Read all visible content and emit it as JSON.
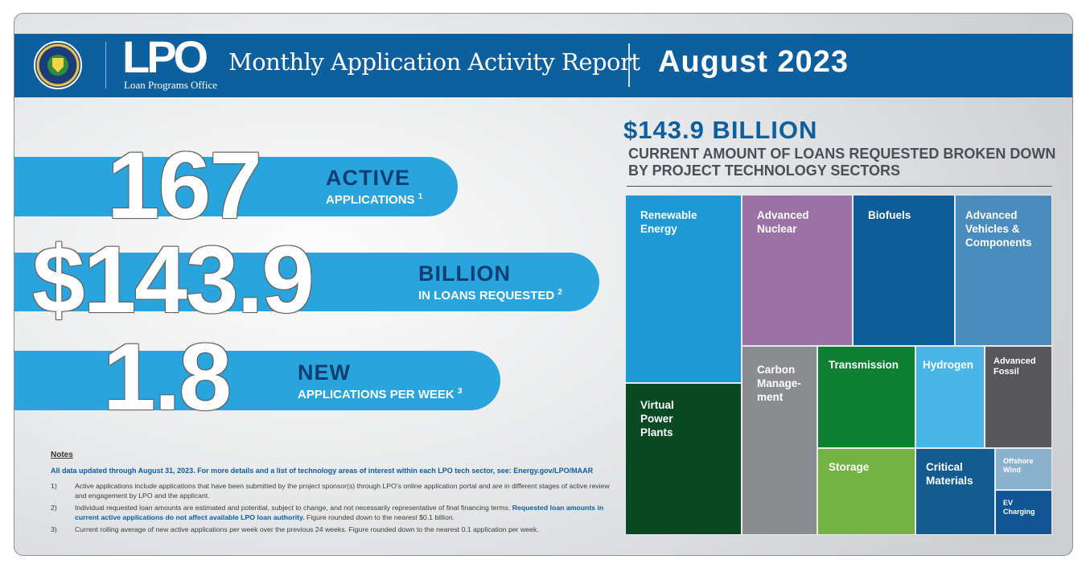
{
  "header": {
    "seal_label": "U.S. Department of Energy seal",
    "logo_text": "LPO",
    "logo_subtitle": "Loan Programs Office",
    "title": "Monthly Application Activity Report",
    "date": "August 2023"
  },
  "stats": [
    {
      "number": "167",
      "label": "ACTIVE",
      "sublabel": "APPLICATIONS",
      "note": "1"
    },
    {
      "number": "$143.9",
      "label": "BILLION",
      "sublabel": "IN LOANS REQUESTED",
      "note": "2"
    },
    {
      "number": "1.8",
      "label": "NEW",
      "sublabel": "APPLICATIONS PER WEEK",
      "note": "3"
    }
  ],
  "notes": {
    "title": "Notes",
    "lead": "All data updated through August 31, 2023. For more details and a list of technology areas of interest within each LPO tech sector, see: ",
    "lead_link": "Energy.gov/LPO/MAAR",
    "items": [
      {
        "num": "1)",
        "text": "Active applications include applications that have been submitted by the project sponsor(s) through LPO’s online application portal and are in different stages of active review and engagement by LPO and the applicant."
      },
      {
        "num": "2)",
        "text": "Individual requested loan amounts are estimated and potential, subject to change, and not necessarily representative of final financing terms. ",
        "highlight": "Requested loan amounts in current active applications do not affect available LPO loan authority.",
        "text_after": " Figure rounded down to the nearest $0.1 billion."
      },
      {
        "num": "3)",
        "text": "Current rolling average of new active applications per week over the previous 24 weeks. Figure rounded down to the nearest 0.1 application per week."
      }
    ]
  },
  "treemap_section": {
    "amount": "$143.9 BILLION",
    "caption": "CURRENT AMOUNT OF LOANS REQUESTED BROKEN DOWN BY PROJECT TECHNOLOGY SECTORS"
  },
  "chart_data": {
    "type": "treemap",
    "title": "$143.9 BILLION",
    "subtitle": "CURRENT AMOUNT OF LOANS REQUESTED BROKEN DOWN BY PROJECT TECHNOLOGY SECTORS",
    "total": 143.9,
    "unit": "billion USD",
    "sectors": [
      {
        "name": "Renewable Energy",
        "color": "#1b9ad6"
      },
      {
        "name": "Advanced Nuclear",
        "color": "#9b72a6"
      },
      {
        "name": "Biofuels",
        "color": "#0c5d99"
      },
      {
        "name": "Advanced Vehicles & Components",
        "color": "#4a8dbd"
      },
      {
        "name": "Virtual Power Plants",
        "color": "#0a4a22"
      },
      {
        "name": "Carbon Manage-ment",
        "color": "#8a8c8f"
      },
      {
        "name": "Transmission",
        "color": "#0f7f34"
      },
      {
        "name": "Hydrogen",
        "color": "#48b5e6"
      },
      {
        "name": "Advanced Fossil",
        "color": "#58585c"
      },
      {
        "name": "Storage",
        "color": "#73b343"
      },
      {
        "name": "Critical Materials",
        "color": "#135c8f"
      },
      {
        "name": "Offshore Wind",
        "color": "#8ab2cf"
      },
      {
        "name": "EV Charging",
        "color": "#105695"
      }
    ]
  }
}
